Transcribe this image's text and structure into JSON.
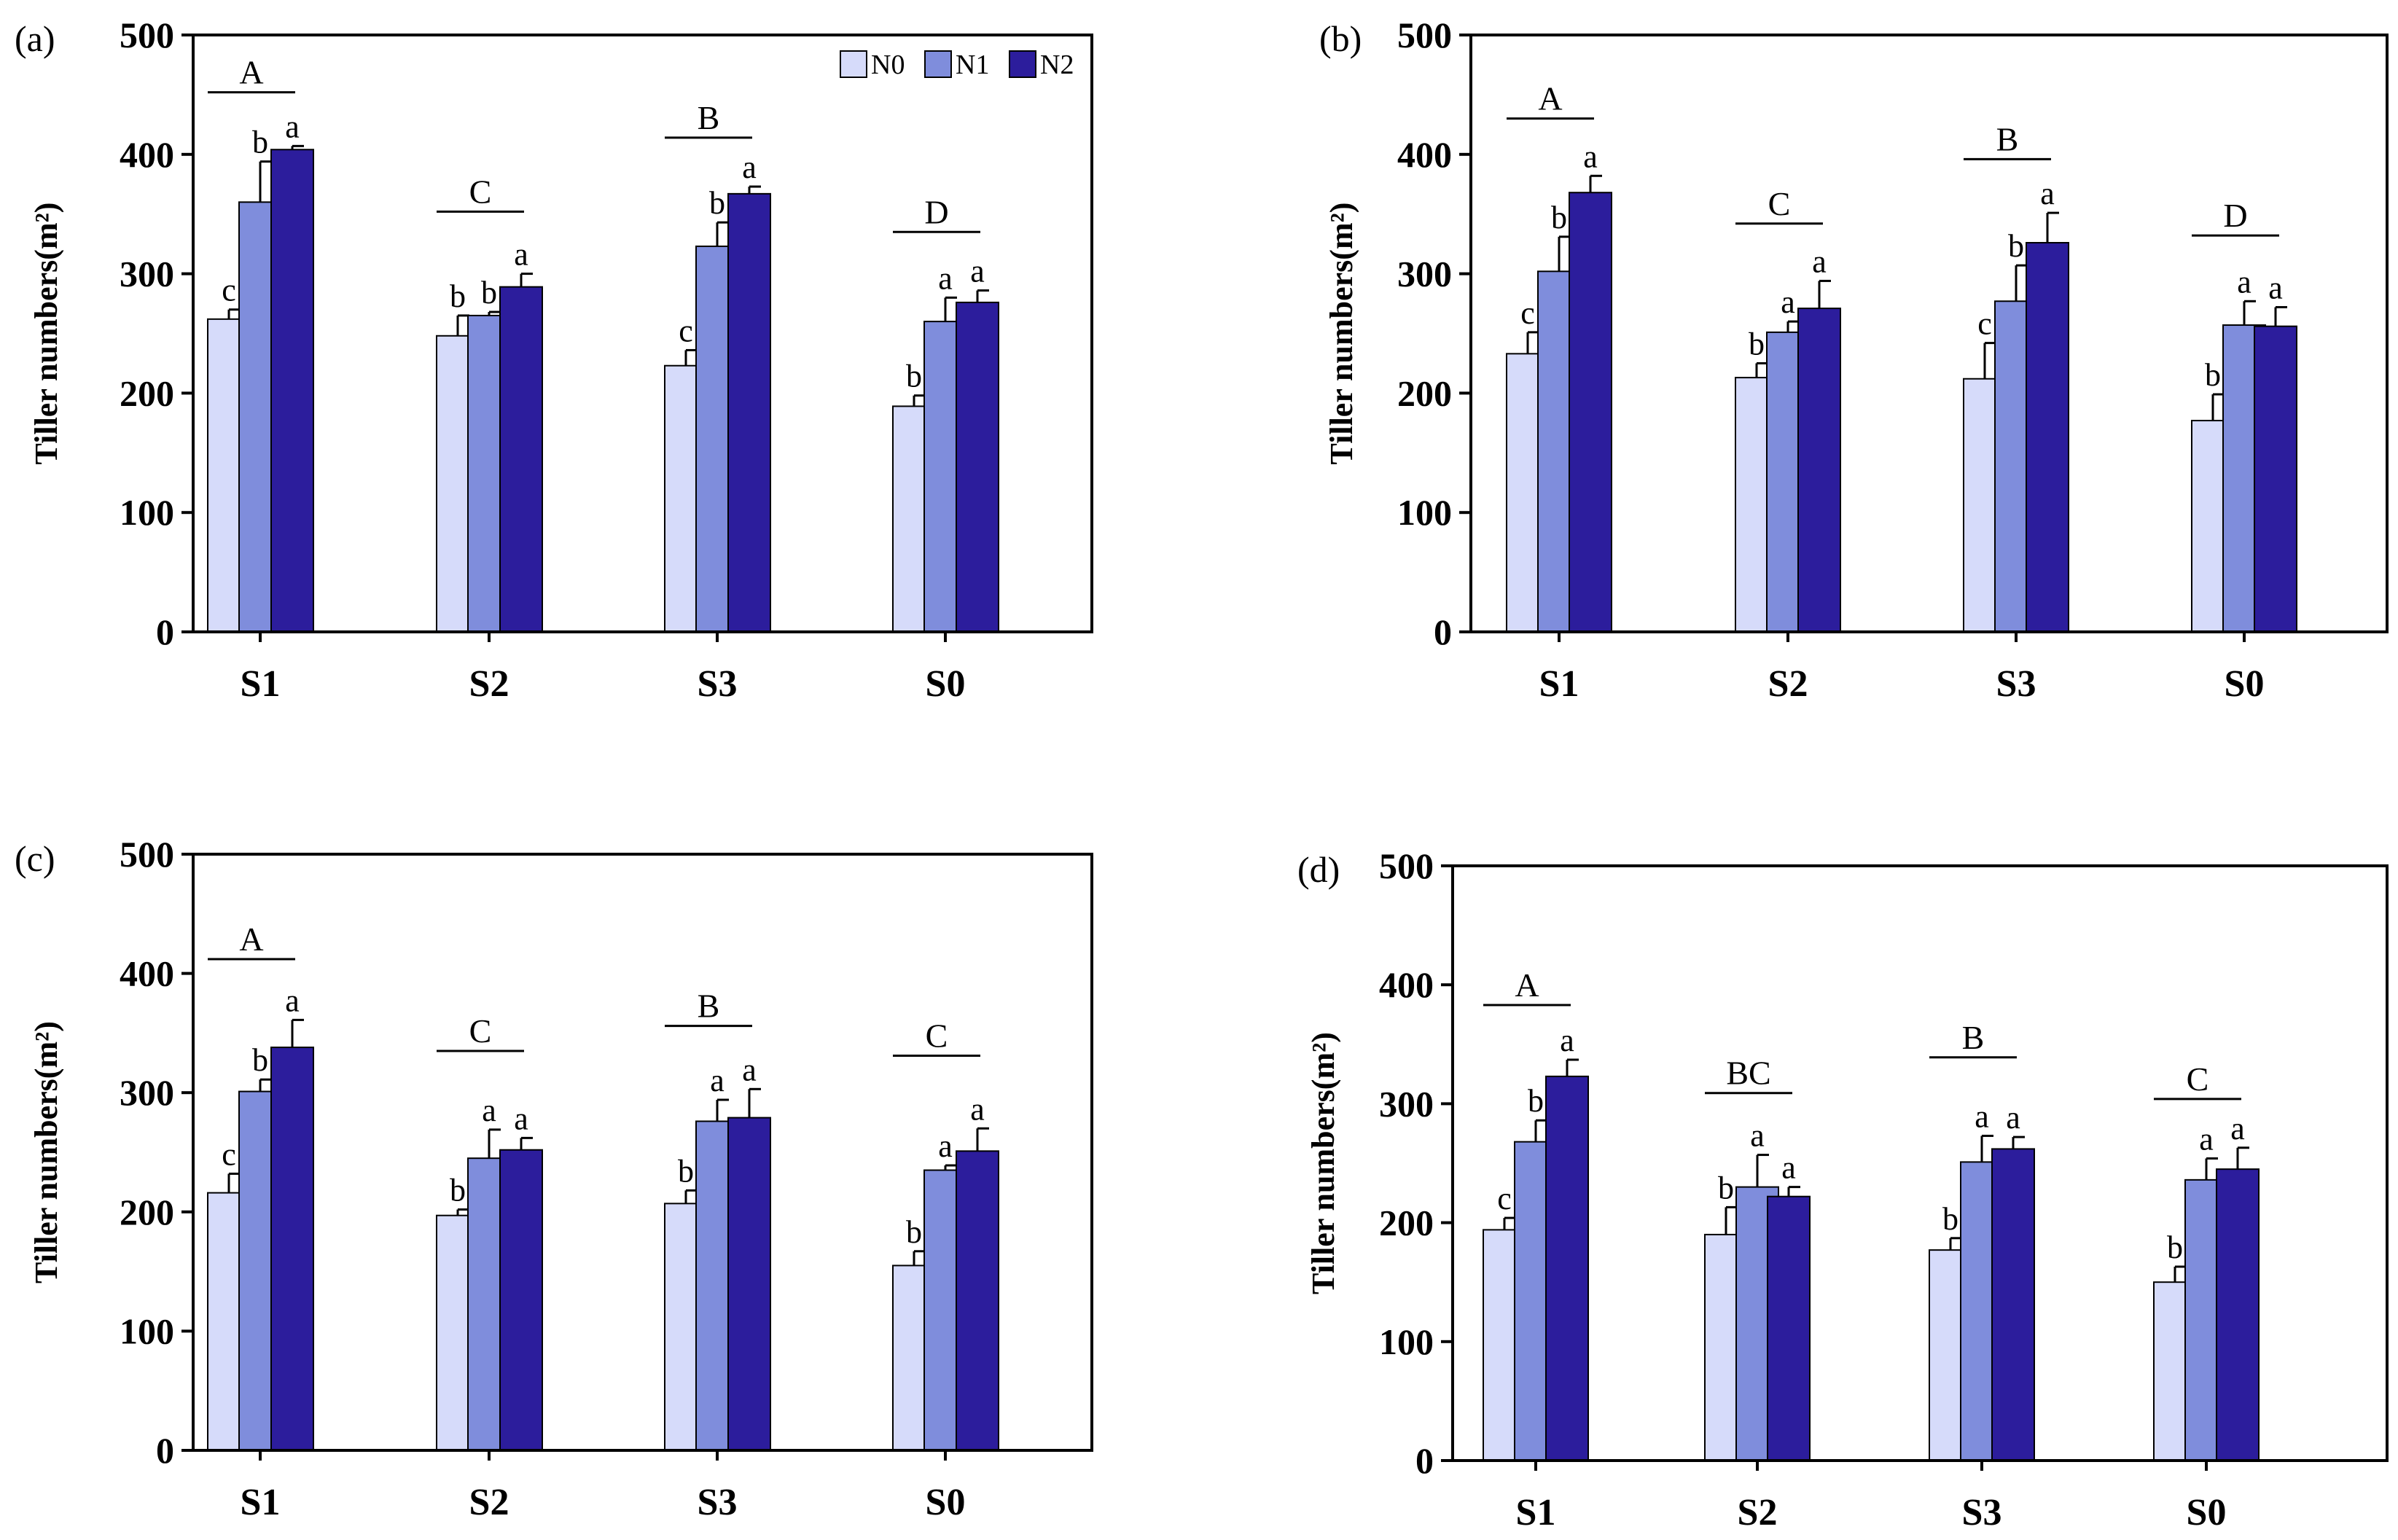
{
  "chart_data": [
    {
      "type": "bar",
      "panel_label": "(a)",
      "ylabel": "Tiller numbers(m²)",
      "ylim": [
        0,
        500
      ],
      "yticks": [
        0,
        100,
        200,
        300,
        400,
        500
      ],
      "categories": [
        "S1",
        "S2",
        "S3",
        "S0"
      ],
      "series": [
        {
          "name": "N0",
          "values": [
            262,
            248,
            223,
            189
          ],
          "errors": [
            8,
            17,
            13,
            9
          ],
          "letters": [
            "c",
            "b",
            "c",
            "b"
          ]
        },
        {
          "name": "N1",
          "values": [
            360,
            265,
            323,
            260
          ],
          "errors": [
            34,
            3,
            20,
            20
          ],
          "letters": [
            "b",
            "b",
            "b",
            "a"
          ]
        },
        {
          "name": "N2",
          "values": [
            404,
            289,
            367,
            276
          ],
          "errors": [
            3,
            11,
            6,
            10
          ],
          "letters": [
            "a",
            "a",
            "a",
            "a"
          ]
        }
      ],
      "group_letters": [
        "A",
        "C",
        "B",
        "D"
      ],
      "group_letter_values": [
        452,
        352,
        414,
        335
      ],
      "legend": true
    },
    {
      "type": "bar",
      "panel_label": "(b)",
      "ylabel": "Tiller numbers(m²)",
      "ylim": [
        0,
        500
      ],
      "yticks": [
        0,
        100,
        200,
        300,
        400,
        500
      ],
      "categories": [
        "S1",
        "S2",
        "S3",
        "S0"
      ],
      "series": [
        {
          "name": "N0",
          "values": [
            233,
            213,
            212,
            177
          ],
          "errors": [
            18,
            12,
            30,
            22
          ],
          "letters": [
            "c",
            "b",
            "c",
            "b"
          ]
        },
        {
          "name": "N1",
          "values": [
            302,
            251,
            277,
            257
          ],
          "errors": [
            29,
            9,
            30,
            20
          ],
          "letters": [
            "b",
            "a",
            "b",
            "a"
          ]
        },
        {
          "name": "N2",
          "values": [
            368,
            271,
            326,
            256
          ],
          "errors": [
            14,
            23,
            25,
            16
          ],
          "letters": [
            "a",
            "a",
            "a",
            "a"
          ]
        }
      ],
      "group_letters": [
        "A",
        "C",
        "B",
        "D"
      ],
      "group_letter_values": [
        430,
        342,
        396,
        332
      ],
      "legend": false
    },
    {
      "type": "bar",
      "panel_label": "(c)",
      "ylabel": "Tiller numbers(m²)",
      "ylim": [
        0,
        500
      ],
      "yticks": [
        0,
        100,
        200,
        300,
        400,
        500
      ],
      "categories": [
        "S1",
        "S2",
        "S3",
        "S0"
      ],
      "series": [
        {
          "name": "N0",
          "values": [
            216,
            197,
            207,
            155
          ],
          "errors": [
            16,
            5,
            11,
            12
          ],
          "letters": [
            "c",
            "b",
            "b",
            "b"
          ]
        },
        {
          "name": "N1",
          "values": [
            301,
            245,
            276,
            235
          ],
          "errors": [
            10,
            24,
            18,
            4
          ],
          "letters": [
            "b",
            "a",
            "a",
            "a"
          ]
        },
        {
          "name": "N2",
          "values": [
            338,
            252,
            279,
            251
          ],
          "errors": [
            23,
            10,
            24,
            19
          ],
          "letters": [
            "a",
            "a",
            "a",
            "a"
          ]
        }
      ],
      "group_letters": [
        "A",
        "C",
        "B",
        "C"
      ],
      "group_letter_values": [
        412,
        335,
        356,
        331
      ],
      "legend": false
    },
    {
      "type": "bar",
      "panel_label": "(d)",
      "ylabel": "Tiller numbers(m²)",
      "ylim": [
        0,
        500
      ],
      "yticks": [
        0,
        100,
        200,
        300,
        400,
        500
      ],
      "categories": [
        "S1",
        "S2",
        "S3",
        "S0"
      ],
      "series": [
        {
          "name": "N0",
          "values": [
            194,
            190,
            177,
            150
          ],
          "errors": [
            10,
            23,
            10,
            13
          ],
          "letters": [
            "c",
            "b",
            "b",
            "b"
          ]
        },
        {
          "name": "N1",
          "values": [
            268,
            230,
            251,
            236
          ],
          "errors": [
            18,
            27,
            22,
            18
          ],
          "letters": [
            "b",
            "a",
            "a",
            "a"
          ]
        },
        {
          "name": "N2",
          "values": [
            323,
            222,
            262,
            245
          ],
          "errors": [
            14,
            8,
            10,
            18
          ],
          "letters": [
            "a",
            "a",
            "a",
            "a"
          ]
        }
      ],
      "group_letters": [
        "A",
        "BC",
        "B",
        "C"
      ],
      "group_letter_values": [
        383,
        309,
        339,
        304
      ],
      "legend": false
    }
  ],
  "colors": {
    "N0": "#d6dbfa",
    "N1": "#7f8ddc",
    "N2": "#2c1d9c",
    "outline": "#000000"
  }
}
